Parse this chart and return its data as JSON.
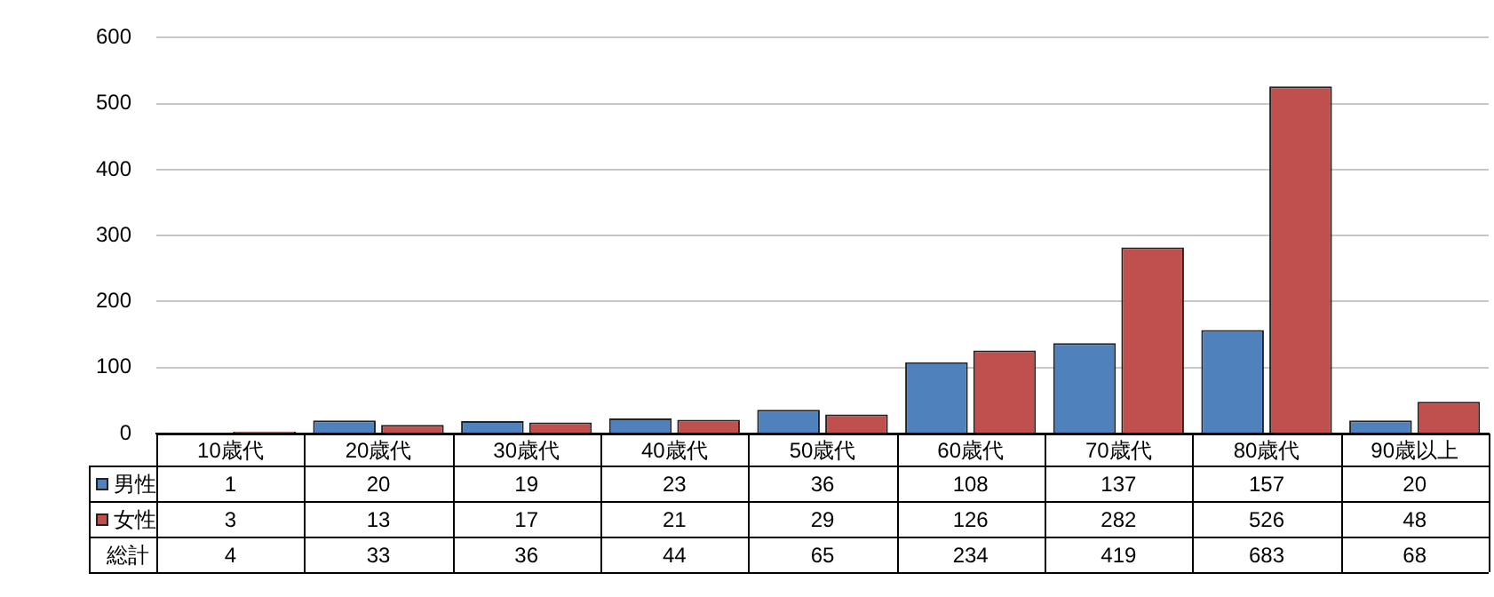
{
  "chart_data": {
    "type": "bar",
    "categories": [
      "10歳代",
      "20歳代",
      "30歳代",
      "40歳代",
      "50歳代",
      "60歳代",
      "70歳代",
      "80歳代",
      "90歳以上"
    ],
    "series": [
      {
        "name": "男性",
        "color": "#4f81bd",
        "values": [
          1,
          20,
          19,
          23,
          36,
          108,
          137,
          157,
          20
        ]
      },
      {
        "name": "女性",
        "color": "#c0504d",
        "values": [
          3,
          13,
          17,
          21,
          29,
          126,
          282,
          526,
          48
        ]
      }
    ],
    "annotations": [
      "総計",
      "4",
      "33",
      "36",
      "44",
      "65",
      "234",
      "419",
      "683",
      "68"
    ],
    "ylim": [
      0,
      600
    ],
    "yticks": [
      0,
      100,
      200,
      300,
      400,
      500,
      600
    ],
    "grid": "y",
    "legend": "bottom left",
    "data_labels": true
  }
}
